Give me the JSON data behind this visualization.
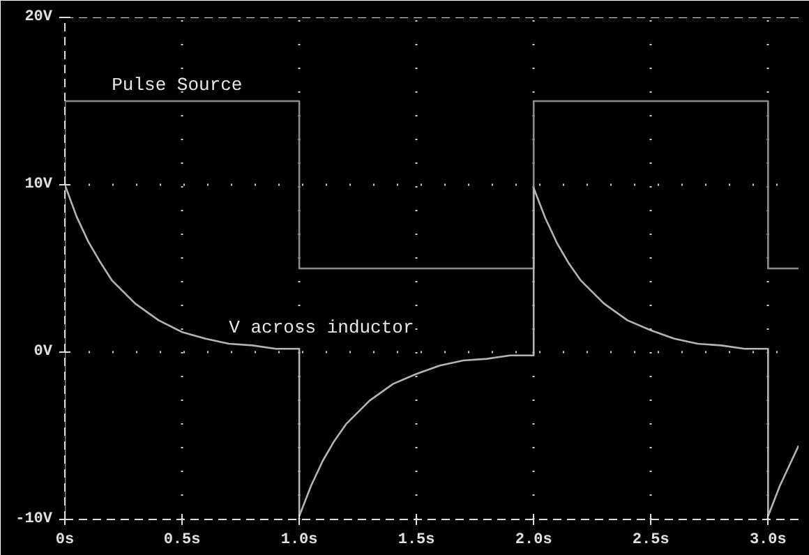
{
  "chart_data": {
    "type": "line",
    "xlim": [
      0,
      3.13
    ],
    "ylim": [
      -10,
      20
    ],
    "xticks": [
      {
        "value": 0,
        "label": "0s"
      },
      {
        "value": 0.5,
        "label": "0.5s"
      },
      {
        "value": 1.0,
        "label": "1.0s"
      },
      {
        "value": 1.5,
        "label": "1.5s"
      },
      {
        "value": 2.0,
        "label": "2.0s"
      },
      {
        "value": 2.5,
        "label": "2.5s"
      },
      {
        "value": 3.0,
        "label": "3.0s"
      }
    ],
    "yticks": [
      {
        "value": -10,
        "label": "-10V"
      },
      {
        "value": 0,
        "label": "0V"
      },
      {
        "value": 10,
        "label": "10V"
      },
      {
        "value": 20,
        "label": "20V"
      }
    ],
    "grid": true,
    "line_style": "solid",
    "marker": "none",
    "series": [
      {
        "color": "#8c8c8c",
        "x": [
          0,
          0,
          1.0,
          1.0,
          2.0,
          2.0,
          3.0,
          3.0,
          3.13
        ],
        "values": [
          -10,
          15,
          15,
          5,
          5,
          15,
          15,
          5,
          5
        ]
      },
      {
        "color": "#b4b4b4",
        "x": [
          0,
          0.05,
          0.1,
          0.15,
          0.2,
          0.3,
          0.4,
          0.5,
          0.6,
          0.7,
          0.8,
          0.9,
          1.0,
          1.0,
          1.05,
          1.1,
          1.15,
          1.2,
          1.3,
          1.4,
          1.5,
          1.6,
          1.7,
          1.8,
          1.9,
          2.0,
          2.0,
          2.05,
          2.1,
          2.15,
          2.2,
          2.3,
          2.4,
          2.5,
          2.6,
          2.7,
          2.8,
          2.9,
          3.0,
          3.0,
          3.05,
          3.1,
          3.13
        ],
        "values": [
          10,
          8.1,
          6.6,
          5.4,
          4.3,
          2.9,
          1.9,
          1.2,
          0.8,
          0.5,
          0.4,
          0.2,
          0.2,
          -9.8,
          -8.0,
          -6.5,
          -5.3,
          -4.3,
          -2.9,
          -1.9,
          -1.3,
          -0.8,
          -0.5,
          -0.4,
          -0.2,
          -0.2,
          9.8,
          8.0,
          6.5,
          5.3,
          4.3,
          2.9,
          1.9,
          1.3,
          0.8,
          0.5,
          0.4,
          0.2,
          0.2,
          -9.8,
          -8.0,
          -6.5,
          -5.6
        ]
      }
    ],
    "annotations": [
      {
        "text": "Pulse Source",
        "x": 0.2,
        "y": 15
      },
      {
        "text": "V across inductor",
        "x": 0.7,
        "y": 0.5
      }
    ]
  }
}
